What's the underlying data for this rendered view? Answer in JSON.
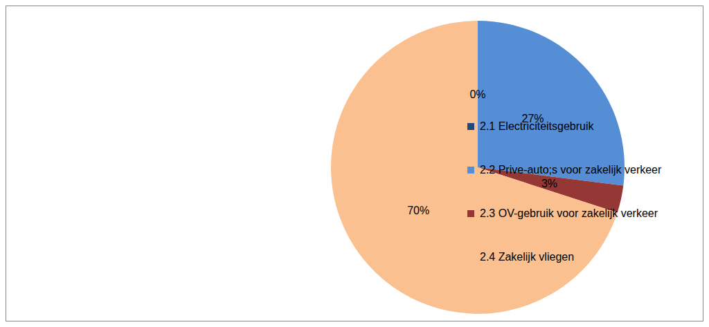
{
  "chart_data": {
    "type": "pie",
    "categories": [
      "2.1 Electriciteitsgebruik",
      "2.2 Prive-auto;s voor zakelijk verkeer",
      "2.3 OV-gebruik voor zakelijk verkeer",
      "2.4 Zakelijk vliegen"
    ],
    "values": [
      0,
      27,
      3,
      70
    ],
    "value_labels": [
      "0%",
      "27%",
      "3%",
      "70%"
    ],
    "colors": [
      "#1f497d",
      "#558ed5",
      "#953735",
      "#fac090"
    ],
    "data_labels": true,
    "legend": "right"
  }
}
